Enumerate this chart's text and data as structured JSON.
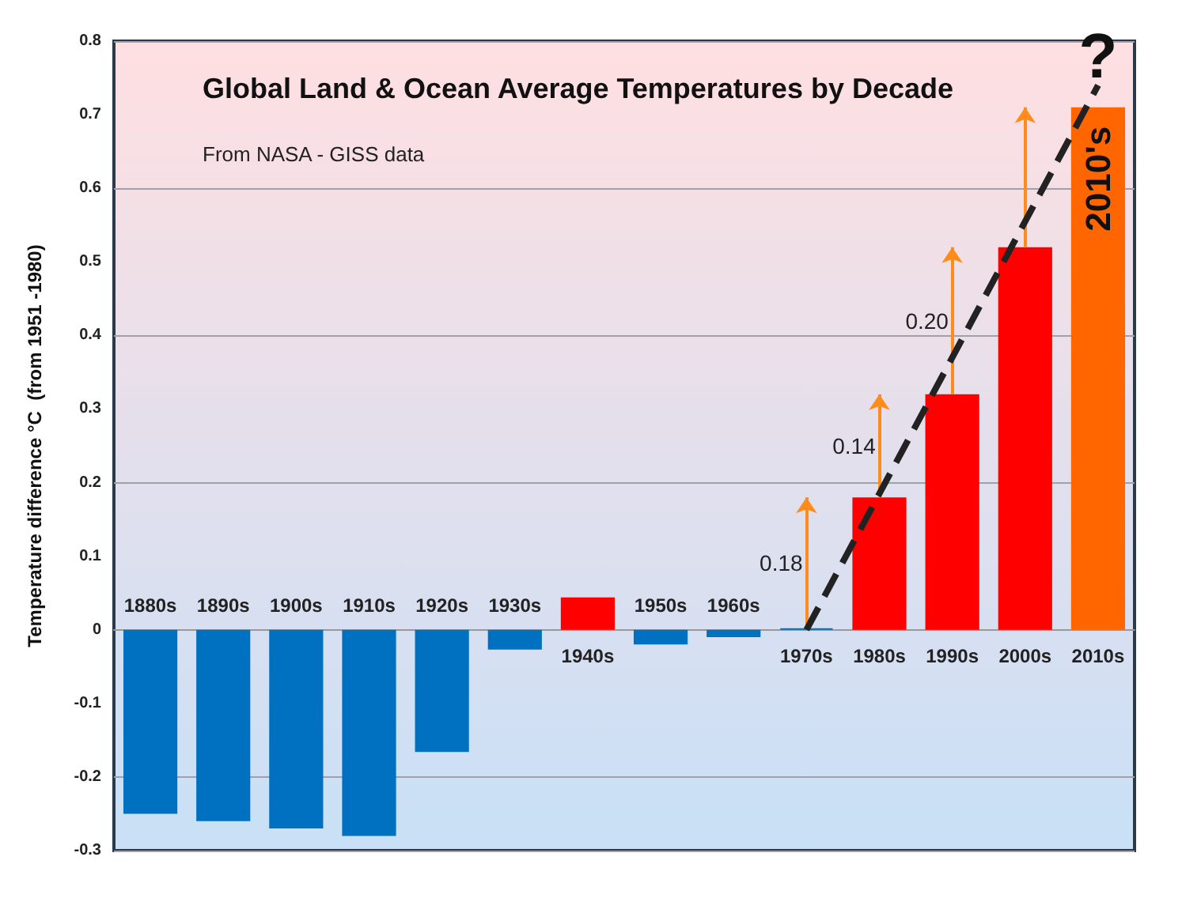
{
  "chart_data": {
    "type": "bar",
    "title": "Global Land & Ocean Average Temperatures by Decade",
    "subtitle": "From NASA - GISS data",
    "ylabel": "Temperature difference °C  (from 1951 -1980)",
    "categories": [
      "1880s",
      "1890s",
      "1900s",
      "1910s",
      "1920s",
      "1930s",
      "1940s",
      "1950s",
      "1960s",
      "1970s",
      "1980s",
      "1990s",
      "2000s",
      "2010s"
    ],
    "values": [
      -0.25,
      -0.26,
      -0.27,
      -0.28,
      -0.166,
      -0.027,
      0.044,
      -0.02,
      -0.01,
      0.002,
      0.18,
      0.32,
      0.52,
      0.71
    ],
    "colors": [
      "#0070c0",
      "#0070c0",
      "#0070c0",
      "#0070c0",
      "#0070c0",
      "#0070c0",
      "#ff0000",
      "#0070c0",
      "#0070c0",
      "#0070c0",
      "#ff0000",
      "#ff0000",
      "#ff0000",
      "#ff6600"
    ],
    "series": [
      {
        "type": "line",
        "x": [
          "1970s",
          "2010s"
        ],
        "values": [
          0,
          0.74
        ],
        "color": "#222222",
        "line_style": "dashed",
        "marker": "none"
      }
    ],
    "annotations": [
      "0.18",
      "0.14",
      "0.20",
      {
        "text": "2010's",
        "x": "2010s",
        "y": 0.71
      },
      {
        "text": "?",
        "x": "2010s",
        "y": 0.74
      }
    ],
    "ylim": [
      -0.3,
      0.8
    ],
    "yticks": [
      -0.3,
      -0.2,
      -0.1,
      0,
      0.1,
      0.2,
      0.3,
      0.4,
      0.5,
      0.6,
      0.7,
      0.8
    ],
    "grid": "y"
  }
}
